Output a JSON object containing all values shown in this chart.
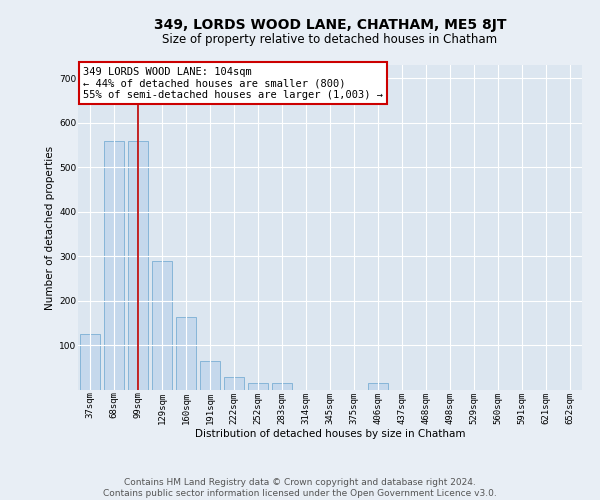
{
  "title": "349, LORDS WOOD LANE, CHATHAM, ME5 8JT",
  "subtitle": "Size of property relative to detached houses in Chatham",
  "xlabel": "Distribution of detached houses by size in Chatham",
  "ylabel": "Number of detached properties",
  "bin_labels": [
    "37sqm",
    "68sqm",
    "99sqm",
    "129sqm",
    "160sqm",
    "191sqm",
    "222sqm",
    "252sqm",
    "283sqm",
    "314sqm",
    "345sqm",
    "375sqm",
    "406sqm",
    "437sqm",
    "468sqm",
    "498sqm",
    "529sqm",
    "560sqm",
    "591sqm",
    "621sqm",
    "652sqm"
  ],
  "bar_heights": [
    125,
    560,
    560,
    290,
    165,
    65,
    30,
    15,
    15,
    0,
    0,
    0,
    15,
    0,
    0,
    0,
    0,
    0,
    0,
    0,
    0
  ],
  "bar_color": "#c5d8ec",
  "bar_edge_color": "#7aafd4",
  "highlight_bar_index": 2,
  "highlight_color": "#bb0000",
  "ylim": [
    0,
    730
  ],
  "yticks": [
    100,
    200,
    300,
    400,
    500,
    600,
    700
  ],
  "annotation_text": "349 LORDS WOOD LANE: 104sqm\n← 44% of detached houses are smaller (800)\n55% of semi-detached houses are larger (1,003) →",
  "annotation_box_color": "#ffffff",
  "annotation_box_edge_color": "#cc0000",
  "footer_line1": "Contains HM Land Registry data © Crown copyright and database right 2024.",
  "footer_line2": "Contains public sector information licensed under the Open Government Licence v3.0.",
  "background_color": "#e8eef5",
  "plot_bg_color": "#dce6f0",
  "grid_color": "#ffffff",
  "title_fontsize": 10,
  "subtitle_fontsize": 8.5,
  "axis_label_fontsize": 7.5,
  "tick_label_fontsize": 6.5,
  "annotation_fontsize": 7.5,
  "footer_fontsize": 6.5
}
